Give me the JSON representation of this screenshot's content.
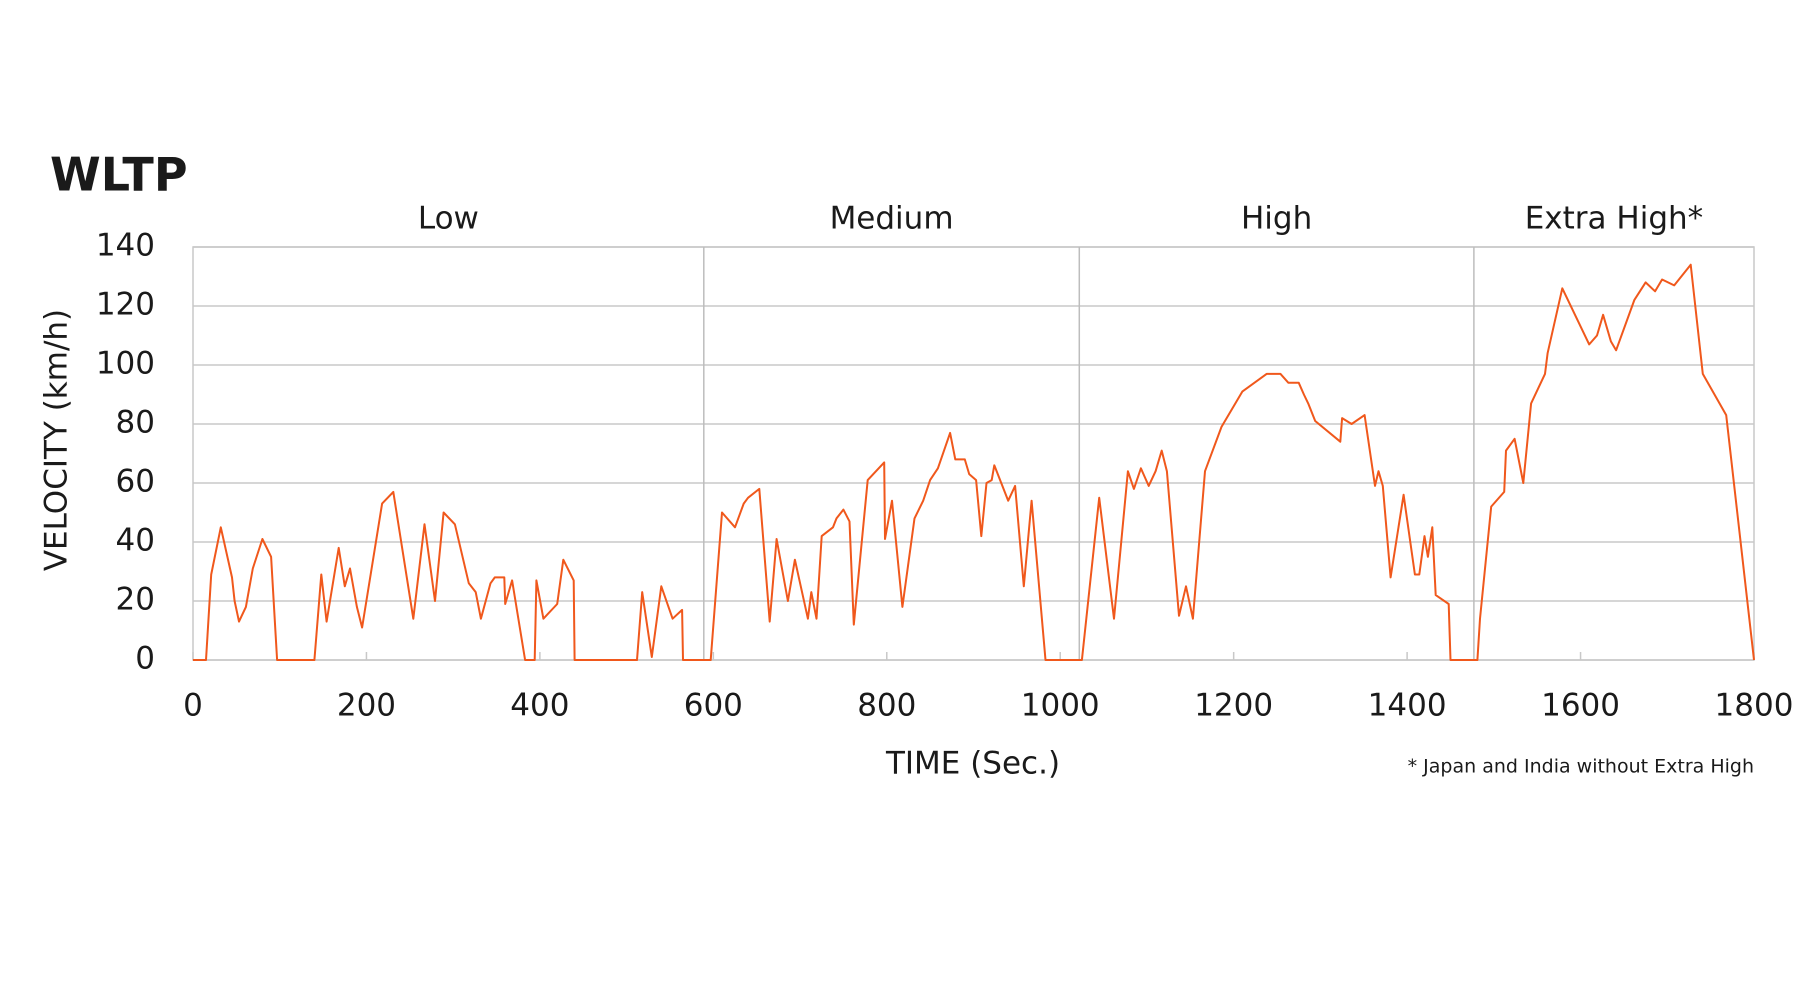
{
  "chart_data": {
    "type": "line",
    "title": "WLTP",
    "x_label": "TIME  (Sec.)",
    "y_label": "VELOCITY (km/h)",
    "footnote": "* Japan and India without Extra High",
    "phases": [
      "Low",
      "Medium",
      "High",
      "Extra High*"
    ],
    "phase_boundaries": [
      589,
      1022,
      1477
    ],
    "xlim": [
      0,
      1800
    ],
    "ylim": [
      0,
      140
    ],
    "xticks": [
      0,
      200,
      400,
      600,
      800,
      1000,
      1200,
      1400,
      1600,
      1800
    ],
    "yticks": [
      0,
      20,
      40,
      60,
      80,
      100,
      120,
      140
    ],
    "grid": true,
    "x": [
      0,
      15,
      21,
      32,
      45,
      48,
      53,
      61,
      69,
      80,
      90,
      97,
      140,
      148,
      154,
      168,
      175,
      181,
      189,
      195,
      218,
      231,
      254,
      267,
      279,
      289,
      302,
      318,
      326,
      332,
      343,
      348,
      359,
      360,
      368,
      383,
      394,
      396,
      404,
      420,
      427,
      439,
      440,
      512,
      518,
      529,
      540,
      553,
      564,
      565,
      597,
      610,
      625,
      635,
      640,
      653,
      665,
      673,
      686,
      694,
      709,
      713,
      719,
      725,
      738,
      742,
      750,
      757,
      762,
      778,
      797,
      798,
      806,
      818,
      832,
      842,
      850,
      859,
      873,
      879,
      890,
      895,
      903,
      909,
      915,
      921,
      924,
      940,
      948,
      958,
      967,
      983,
      1025,
      1045,
      1062,
      1078,
      1085,
      1093,
      1102,
      1110,
      1117,
      1123,
      1137,
      1145,
      1153,
      1167,
      1186,
      1210,
      1238,
      1254,
      1263,
      1275,
      1281,
      1286,
      1294,
      1323,
      1325,
      1336,
      1351,
      1363,
      1367,
      1372,
      1381,
      1396,
      1409,
      1414,
      1420,
      1424,
      1429,
      1433,
      1448,
      1450,
      1481,
      1484,
      1497,
      1512,
      1514,
      1524,
      1534,
      1543,
      1559,
      1562,
      1579,
      1610,
      1619,
      1626,
      1635,
      1641,
      1662,
      1675,
      1686,
      1694,
      1708,
      1727,
      1741,
      1768,
      1800
    ],
    "series": [
      {
        "name": "Velocity",
        "color": "#f0581c",
        "values": [
          0,
          0,
          29,
          45,
          28,
          20,
          13,
          18,
          31,
          41,
          35,
          0,
          0,
          29,
          13,
          38,
          25,
          31,
          18,
          11,
          53,
          57,
          14,
          46,
          20,
          50,
          46,
          26,
          23,
          14,
          26,
          28,
          28,
          19,
          27,
          0,
          0,
          27,
          14,
          19,
          34,
          27,
          0,
          0,
          23,
          1,
          25,
          14,
          17,
          0,
          0,
          50,
          45,
          53,
          55,
          58,
          13,
          41,
          20,
          34,
          14,
          23,
          14,
          42,
          45,
          48,
          51,
          47,
          12,
          61,
          67,
          41,
          54,
          18,
          48,
          54,
          61,
          65,
          77,
          68,
          68,
          63,
          61,
          42,
          60,
          61,
          66,
          54,
          59,
          25,
          54,
          0,
          0,
          55,
          14,
          64,
          58,
          65,
          59,
          64,
          71,
          64,
          15,
          25,
          14,
          64,
          79,
          91,
          97,
          97,
          94,
          94,
          90,
          87,
          81,
          74,
          82,
          80,
          83,
          59,
          64,
          59,
          28,
          56,
          29,
          29,
          42,
          35,
          45,
          22,
          19,
          0,
          0,
          14,
          52,
          57,
          71,
          75,
          60,
          87,
          97,
          104,
          126,
          107,
          110,
          117,
          108,
          105,
          122,
          128,
          125,
          129,
          127,
          134,
          97,
          83,
          0
        ]
      }
    ]
  }
}
